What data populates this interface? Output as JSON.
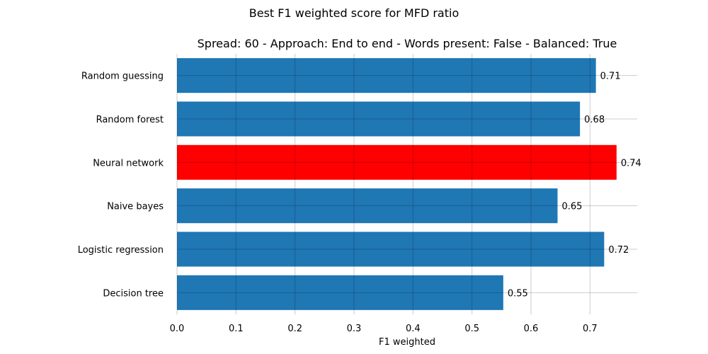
{
  "chart_data": {
    "type": "bar",
    "orientation": "horizontal",
    "suptitle": "Best F1 weighted score for MFD ratio",
    "title": "Spread: 60 - Approach: End to end - Words present: False - Balanced: True",
    "xlabel": "F1 weighted",
    "ylabel": "",
    "xlim": [
      0,
      0.78
    ],
    "xticks": [
      0.0,
      0.1,
      0.2,
      0.3,
      0.4,
      0.5,
      0.6,
      0.7
    ],
    "xtick_labels": [
      "0.0",
      "0.1",
      "0.2",
      "0.3",
      "0.4",
      "0.5",
      "0.6",
      "0.7"
    ],
    "grid": true,
    "categories": [
      "Random guessing",
      "Random forest",
      "Neural network",
      "Naive bayes",
      "Logistic regression",
      "Decision tree"
    ],
    "values": [
      0.71,
      0.683,
      0.745,
      0.645,
      0.724,
      0.553
    ],
    "value_labels": [
      "0.71",
      "0.68",
      "0.74",
      "0.65",
      "0.72",
      "0.55"
    ],
    "colors": [
      "#1f77b4",
      "#1f77b4",
      "#ff0000",
      "#1f77b4",
      "#1f77b4",
      "#1f77b4"
    ],
    "highlight": "Neural network"
  }
}
